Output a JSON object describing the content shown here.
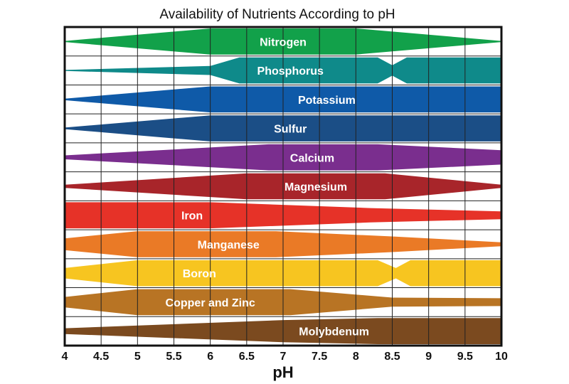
{
  "chart_data": {
    "type": "area",
    "title": "Availability of Nutrients According to pH",
    "xlabel": "pH",
    "ylabel": "",
    "xlim": [
      4,
      10
    ],
    "x_ticks": [
      "4",
      "4.5",
      "5",
      "5.5",
      "6",
      "6.5",
      "7",
      "7.5",
      "8",
      "8.5",
      "9",
      "9.5",
      "10"
    ],
    "grid": true,
    "series": [
      {
        "name": "Nitrogen",
        "color": "#12a14a",
        "label_x": 7.0,
        "profile": [
          [
            4.0,
            0.04
          ],
          [
            6.0,
            1.0
          ],
          [
            8.0,
            1.0
          ],
          [
            10.0,
            0.04
          ]
        ]
      },
      {
        "name": "Phosphorus",
        "color": "#0f8a8a",
        "label_x": 7.1,
        "profile": [
          [
            4.0,
            0.04
          ],
          [
            6.0,
            0.35
          ],
          [
            6.4,
            1.0
          ],
          [
            8.3,
            1.0
          ],
          [
            8.5,
            0.4
          ],
          [
            8.7,
            1.0
          ],
          [
            10.0,
            1.0
          ]
        ]
      },
      {
        "name": "Potassium",
        "color": "#0f5aa8",
        "label_x": 7.6,
        "profile": [
          [
            4.0,
            0.06
          ],
          [
            6.0,
            1.0
          ],
          [
            10.0,
            1.0
          ]
        ]
      },
      {
        "name": "Sulfur",
        "color": "#1b4e86",
        "label_x": 7.1,
        "profile": [
          [
            4.0,
            0.06
          ],
          [
            6.0,
            1.0
          ],
          [
            10.0,
            1.0
          ]
        ]
      },
      {
        "name": "Calcium",
        "color": "#7a2e8e",
        "label_x": 7.4,
        "profile": [
          [
            4.0,
            0.15
          ],
          [
            6.8,
            1.0
          ],
          [
            8.3,
            1.0
          ],
          [
            10.0,
            0.55
          ]
        ]
      },
      {
        "name": "Magnesium",
        "color": "#a8252a",
        "label_x": 7.45,
        "profile": [
          [
            4.0,
            0.12
          ],
          [
            6.5,
            1.0
          ],
          [
            8.4,
            1.0
          ],
          [
            10.0,
            0.12
          ]
        ]
      },
      {
        "name": "Iron",
        "color": "#e63228",
        "label_x": 5.75,
        "profile": [
          [
            4.0,
            1.0
          ],
          [
            6.0,
            1.0
          ],
          [
            8.2,
            0.55
          ],
          [
            10.0,
            0.3
          ]
        ]
      },
      {
        "name": "Manganese",
        "color": "#ea7a26",
        "label_x": 6.25,
        "profile": [
          [
            4.0,
            0.45
          ],
          [
            5.0,
            1.0
          ],
          [
            6.9,
            1.0
          ],
          [
            8.5,
            0.6
          ],
          [
            10.0,
            0.15
          ]
        ]
      },
      {
        "name": "Boron",
        "color": "#f7c520",
        "label_x": 5.85,
        "profile": [
          [
            4.0,
            0.4
          ],
          [
            5.0,
            1.0
          ],
          [
            8.3,
            1.0
          ],
          [
            8.55,
            0.4
          ],
          [
            8.75,
            1.0
          ],
          [
            10.0,
            1.0
          ]
        ]
      },
      {
        "name": "Copper and Zinc",
        "color": "#b87424",
        "label_x": 6.0,
        "profile": [
          [
            4.0,
            0.4
          ],
          [
            5.0,
            1.0
          ],
          [
            7.1,
            1.0
          ],
          [
            8.5,
            0.35
          ],
          [
            10.0,
            0.3
          ]
        ]
      },
      {
        "name": "Molybdenum",
        "color": "#7b4a1f",
        "label_x": 7.7,
        "profile": [
          [
            4.0,
            0.22
          ],
          [
            7.0,
            0.85
          ],
          [
            8.3,
            1.0
          ],
          [
            10.0,
            1.0
          ]
        ]
      }
    ]
  }
}
